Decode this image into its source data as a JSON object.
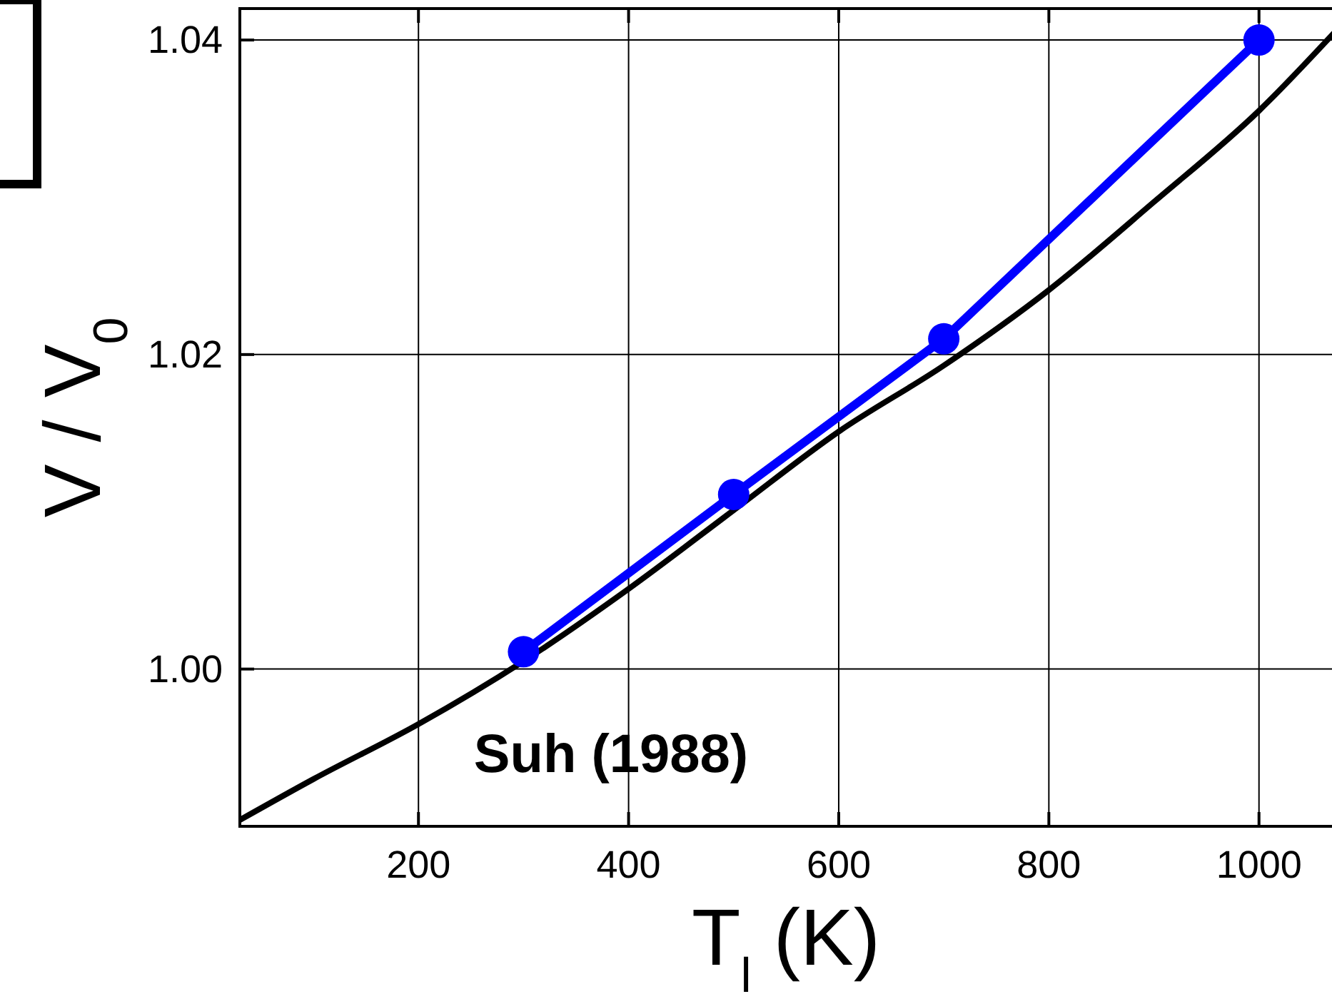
{
  "chart_data": {
    "type": "line",
    "xlabel": "T$_{l}$ (K)",
    "ylabel": "V / V$_{0}$",
    "xlim": [
      30,
      1079
    ],
    "ylim": [
      0.99,
      1.042
    ],
    "xticks": [
      200,
      400,
      600,
      800,
      1000
    ],
    "yticks": [
      {
        "value": 1.0,
        "label": "1.00"
      },
      {
        "value": 1.02,
        "label": "1.02"
      },
      {
        "value": 1.04,
        "label": "1.04"
      }
    ],
    "grid": true,
    "series": [
      {
        "color": "#000000",
        "marker": "none",
        "x": [
          30,
          100,
          200,
          300,
          400,
          500,
          600,
          700,
          800,
          900,
          1000,
          1079
        ],
        "values": [
          0.9904,
          0.993,
          0.9965,
          1.0005,
          1.0051,
          1.0101,
          1.0151,
          1.0193,
          1.0241,
          1.0297,
          1.0355,
          1.041
        ]
      },
      {
        "color": "#0000ff",
        "marker": "circle",
        "x": [
          300,
          500,
          700,
          1000
        ],
        "values": [
          1.0011,
          1.0111,
          1.021,
          1.04
        ]
      }
    ],
    "annotations": [
      "Suh (1988)"
    ]
  }
}
